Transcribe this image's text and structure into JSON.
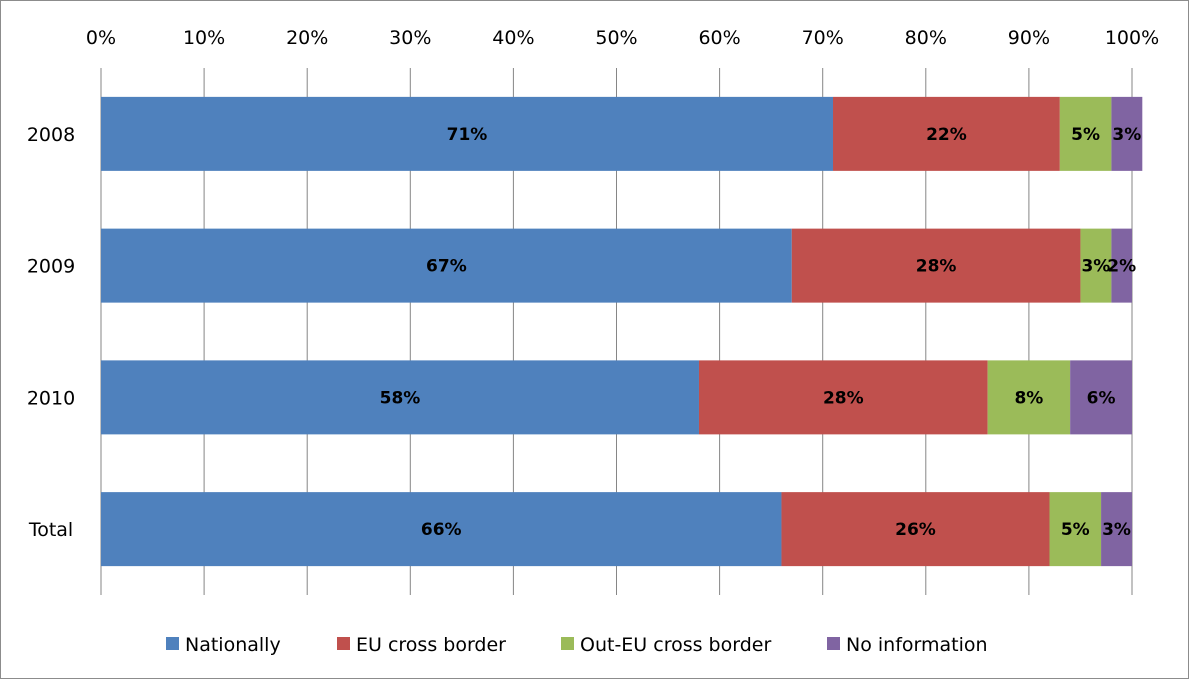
{
  "chart_data": {
    "type": "bar",
    "orientation": "horizontal",
    "stacked": true,
    "normalized_percent": true,
    "categories": [
      "2008",
      "2009",
      "2010",
      "Total"
    ],
    "series": [
      {
        "name": "Nationally",
        "color": "#4f81bd",
        "values": [
          71,
          67,
          58,
          66
        ],
        "labels": [
          "71%",
          "67%",
          "58%",
          "66%"
        ]
      },
      {
        "name": "EU cross border",
        "color": "#c0504d",
        "values": [
          22,
          28,
          28,
          26
        ],
        "labels": [
          "22%",
          "28%",
          "28%",
          "26%"
        ]
      },
      {
        "name": "Out-EU cross border",
        "color": "#9bbb59",
        "values": [
          5,
          3,
          8,
          5
        ],
        "labels": [
          "5%",
          "3%",
          "8%",
          "5%"
        ]
      },
      {
        "name": "No information",
        "color": "#8064a2",
        "values": [
          3,
          2,
          6,
          3
        ],
        "labels": [
          "3%",
          "2%",
          "6%",
          "3%"
        ]
      }
    ],
    "x_ticks": [
      "0%",
      "10%",
      "20%",
      "30%",
      "40%",
      "50%",
      "60%",
      "70%",
      "80%",
      "90%",
      "100%"
    ],
    "xlim": [
      0,
      100
    ],
    "x_axis_position": "top",
    "grid": true,
    "legend_position": "bottom"
  }
}
